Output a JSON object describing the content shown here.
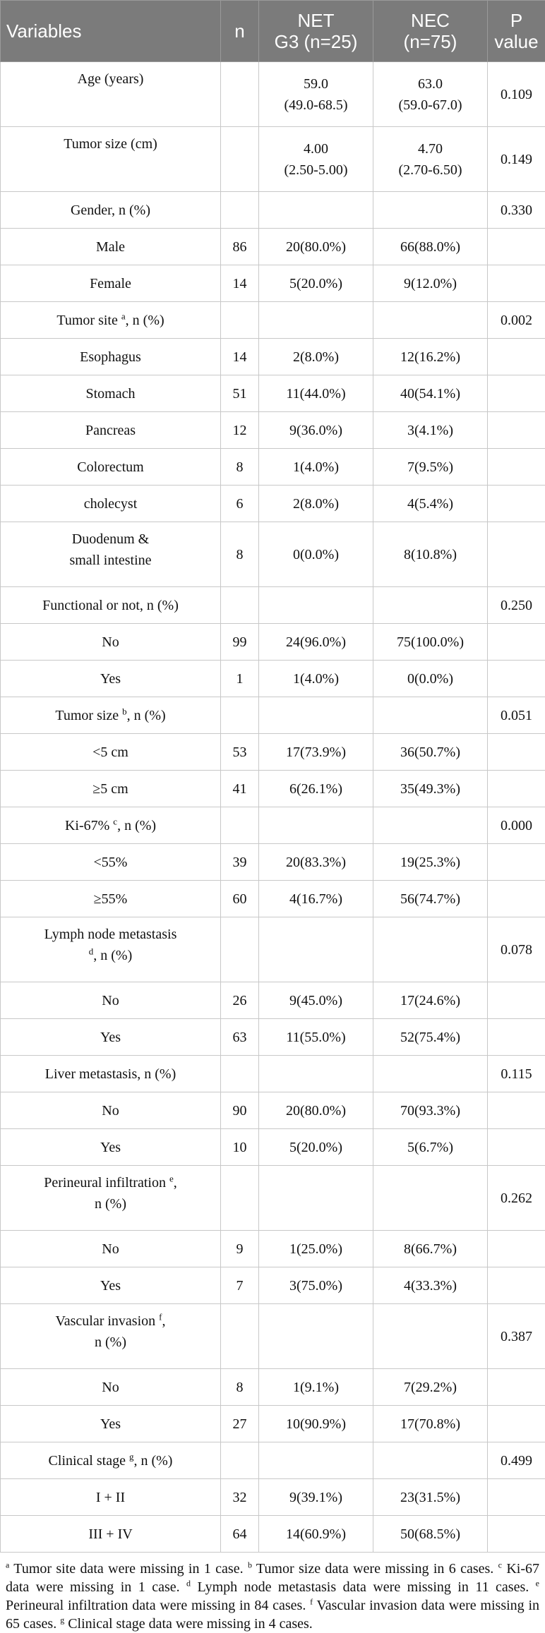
{
  "header": {
    "variables": "Variables",
    "n": "n",
    "net_line1": "NET",
    "net_line2": "G3 (n=25)",
    "nec_line1": "NEC",
    "nec_line2": "(n=75)",
    "p_line1": "P",
    "p_line2": "value"
  },
  "rows": [
    {
      "type": "double",
      "label": [
        "Age (years)"
      ],
      "n": "",
      "net": [
        "59.0",
        "(49.0-68.5)"
      ],
      "nec": [
        "63.0",
        "(59.0-67.0)"
      ],
      "p": "0.109"
    },
    {
      "type": "double",
      "label": [
        "Tumor size (cm)"
      ],
      "n": "",
      "net": [
        "4.00",
        "(2.50-5.00)"
      ],
      "nec": [
        "4.70",
        "(2.70-6.50)"
      ],
      "p": "0.149"
    },
    {
      "type": "single",
      "label": [
        "Gender, n (%)"
      ],
      "n": "",
      "net": [
        ""
      ],
      "nec": [
        ""
      ],
      "p": "0.330"
    },
    {
      "type": "single",
      "label": [
        "Male"
      ],
      "n": "86",
      "net": [
        "20(80.0%)"
      ],
      "nec": [
        "66(88.0%)"
      ],
      "p": ""
    },
    {
      "type": "single",
      "label": [
        "Female"
      ],
      "n": "14",
      "net": [
        "5(20.0%)"
      ],
      "nec": [
        "9(12.0%)"
      ],
      "p": ""
    },
    {
      "type": "single",
      "label": [
        "Tumor site ",
        ", n (%)"
      ],
      "sup": "a",
      "n": "",
      "net": [
        ""
      ],
      "nec": [
        ""
      ],
      "p": "0.002"
    },
    {
      "type": "single",
      "label": [
        "Esophagus"
      ],
      "n": "14",
      "net": [
        "2(8.0%)"
      ],
      "nec": [
        "12(16.2%)"
      ],
      "p": ""
    },
    {
      "type": "single",
      "label": [
        "Stomach"
      ],
      "n": "51",
      "net": [
        "11(44.0%)"
      ],
      "nec": [
        "40(54.1%)"
      ],
      "p": ""
    },
    {
      "type": "single",
      "label": [
        "Pancreas"
      ],
      "n": "12",
      "net": [
        "9(36.0%)"
      ],
      "nec": [
        "3(4.1%)"
      ],
      "p": ""
    },
    {
      "type": "single",
      "label": [
        "Colorectum"
      ],
      "n": "8",
      "net": [
        "1(4.0%)"
      ],
      "nec": [
        "7(9.5%)"
      ],
      "p": ""
    },
    {
      "type": "single",
      "label": [
        "cholecyst"
      ],
      "n": "6",
      "net": [
        "2(8.0%)"
      ],
      "nec": [
        "4(5.4%)"
      ],
      "p": ""
    },
    {
      "type": "double",
      "label": [
        "Duodenum &",
        "small intestine"
      ],
      "n": "8",
      "net": [
        "0(0.0%)"
      ],
      "nec": [
        "8(10.8%)"
      ],
      "p": ""
    },
    {
      "type": "single",
      "label": [
        "Functional or not, n (%)"
      ],
      "n": "",
      "net": [
        ""
      ],
      "nec": [
        ""
      ],
      "p": "0.250"
    },
    {
      "type": "single",
      "label": [
        "No"
      ],
      "n": "99",
      "net": [
        "24(96.0%)"
      ],
      "nec": [
        "75(100.0%)"
      ],
      "p": ""
    },
    {
      "type": "single",
      "label": [
        "Yes"
      ],
      "n": "1",
      "net": [
        "1(4.0%)"
      ],
      "nec": [
        "0(0.0%)"
      ],
      "p": ""
    },
    {
      "type": "single",
      "label": [
        "Tumor size ",
        ", n (%)"
      ],
      "sup": "b",
      "n": "",
      "net": [
        ""
      ],
      "nec": [
        ""
      ],
      "p": "0.051"
    },
    {
      "type": "single",
      "label": [
        "<5 cm"
      ],
      "n": "53",
      "net": [
        "17(73.9%)"
      ],
      "nec": [
        "36(50.7%)"
      ],
      "p": ""
    },
    {
      "type": "single",
      "label": [
        "≥5 cm"
      ],
      "n": "41",
      "net": [
        "6(26.1%)"
      ],
      "nec": [
        "35(49.3%)"
      ],
      "p": ""
    },
    {
      "type": "single",
      "label": [
        "Ki-67% ",
        ", n (%)"
      ],
      "sup": "c",
      "n": "",
      "net": [
        ""
      ],
      "nec": [
        ""
      ],
      "p": "0.000"
    },
    {
      "type": "single",
      "label": [
        "<55%"
      ],
      "n": "39",
      "net": [
        "20(83.3%)"
      ],
      "nec": [
        "19(25.3%)"
      ],
      "p": ""
    },
    {
      "type": "single",
      "label": [
        "≥55%"
      ],
      "n": "60",
      "net": [
        "4(16.7%)"
      ],
      "nec": [
        "56(74.7%)"
      ],
      "p": ""
    },
    {
      "type": "double",
      "label": [
        "Lymph node metastasis",
        ", n (%)"
      ],
      "sup": "d",
      "supline": 2,
      "n": "",
      "net": [
        ""
      ],
      "nec": [
        ""
      ],
      "p": "0.078"
    },
    {
      "type": "single",
      "label": [
        "No"
      ],
      "n": "26",
      "net": [
        "9(45.0%)"
      ],
      "nec": [
        "17(24.6%)"
      ],
      "p": ""
    },
    {
      "type": "single",
      "label": [
        "Yes"
      ],
      "n": "63",
      "net": [
        "11(55.0%)"
      ],
      "nec": [
        "52(75.4%)"
      ],
      "p": ""
    },
    {
      "type": "single",
      "label": [
        "Liver metastasis, n (%)"
      ],
      "n": "",
      "net": [
        ""
      ],
      "nec": [
        ""
      ],
      "p": "0.115"
    },
    {
      "type": "single",
      "label": [
        "No"
      ],
      "n": "90",
      "net": [
        "20(80.0%)"
      ],
      "nec": [
        "70(93.3%)"
      ],
      "p": ""
    },
    {
      "type": "single",
      "label": [
        "Yes"
      ],
      "n": "10",
      "net": [
        "5(20.0%)"
      ],
      "nec": [
        "5(6.7%)"
      ],
      "p": ""
    },
    {
      "type": "double",
      "label": [
        "Perineural infiltration ",
        ",",
        "n (%)"
      ],
      "sup": "e",
      "n": "",
      "net": [
        ""
      ],
      "nec": [
        ""
      ],
      "p": "0.262"
    },
    {
      "type": "single",
      "label": [
        "No"
      ],
      "n": "9",
      "net": [
        "1(25.0%)"
      ],
      "nec": [
        "8(66.7%)"
      ],
      "p": ""
    },
    {
      "type": "single",
      "label": [
        "Yes"
      ],
      "n": "7",
      "net": [
        "3(75.0%)"
      ],
      "nec": [
        "4(33.3%)"
      ],
      "p": ""
    },
    {
      "type": "double",
      "label": [
        "Vascular invasion ",
        ",",
        "n (%)"
      ],
      "sup": "f",
      "n": "",
      "net": [
        ""
      ],
      "nec": [
        ""
      ],
      "p": "0.387"
    },
    {
      "type": "single",
      "label": [
        "No"
      ],
      "n": "8",
      "net": [
        "1(9.1%)"
      ],
      "nec": [
        "7(29.2%)"
      ],
      "p": ""
    },
    {
      "type": "single",
      "label": [
        "Yes"
      ],
      "n": "27",
      "net": [
        "10(90.9%)"
      ],
      "nec": [
        "17(70.8%)"
      ],
      "p": ""
    },
    {
      "type": "single",
      "label": [
        "Clinical stage ",
        ", n (%)"
      ],
      "sup": "g",
      "n": "",
      "net": [
        ""
      ],
      "nec": [
        ""
      ],
      "p": "0.499"
    },
    {
      "type": "single",
      "label": [
        "I + II"
      ],
      "n": "32",
      "net": [
        "9(39.1%)"
      ],
      "nec": [
        "23(31.5%)"
      ],
      "p": ""
    },
    {
      "type": "single",
      "label": [
        "III + IV"
      ],
      "n": "64",
      "net": [
        "14(60.9%)"
      ],
      "nec": [
        "50(68.5%)"
      ],
      "p": ""
    }
  ],
  "footnotes": [
    {
      "mark": "a",
      "text": " Tumor site data were missing in 1 case. "
    },
    {
      "mark": "b",
      "text": " Tumor size data were missing in 6 cases. "
    },
    {
      "mark": "c",
      "text": " Ki-67 data were missing in 1 case. "
    },
    {
      "mark": "d",
      "text": " Lymph node metastasis data were missing in 11 cases. "
    },
    {
      "mark": "e",
      "text": " Perineural infiltration data were missing in 84 cases. "
    },
    {
      "mark": "f",
      "text": " Vascular invasion data were missing in 65 cases. "
    },
    {
      "mark": "g",
      "text": " Clinical stage data were missing in 4 cases."
    }
  ],
  "colors": {
    "header_bg": "#7b7b7b",
    "header_text": "#ffffff",
    "grid": "#c8c8c8"
  }
}
